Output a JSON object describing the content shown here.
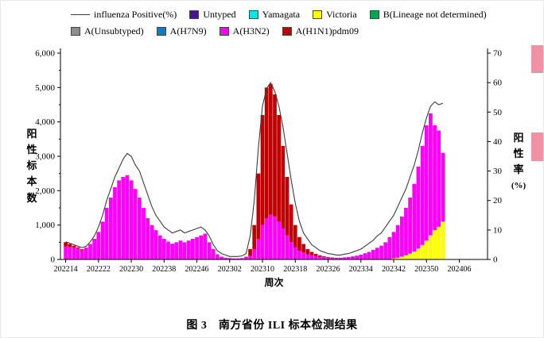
{
  "figure": {
    "caption": "图 3　南方省份 ILI 标本检测结果"
  },
  "chart_data": {
    "type": "stacked-bar-line",
    "title": "南方省份 ILI 标本检测结果",
    "legend_position": "top",
    "grid": false,
    "x_axis": {
      "label": "周次",
      "total_slots": 103,
      "ticks": [
        {
          "label": "202214",
          "index": 0
        },
        {
          "label": "202222",
          "index": 8
        },
        {
          "label": "202230",
          "index": 16
        },
        {
          "label": "202238",
          "index": 24
        },
        {
          "label": "202246",
          "index": 32
        },
        {
          "label": "202302",
          "index": 40
        },
        {
          "label": "202310",
          "index": 48
        },
        {
          "label": "202318",
          "index": 56
        },
        {
          "label": "202326",
          "index": 64
        },
        {
          "label": "202334",
          "index": 72
        },
        {
          "label": "202342",
          "index": 80
        },
        {
          "label": "202350",
          "index": 88
        },
        {
          "label": "202406",
          "index": 96
        }
      ]
    },
    "y_left": {
      "label": "阳性标本数",
      "min": 0,
      "max": 6000,
      "step": 1000,
      "minor_step": 500
    },
    "y_right": {
      "label_cn": "阳性率",
      "label_unit": "(%)",
      "min": 0,
      "max": 70,
      "step": 10
    },
    "legend": [
      {
        "label": "influenza Positive(%)",
        "swatch": "line",
        "color": "#3c3c3c",
        "row": 1
      },
      {
        "label": "Untyped",
        "swatch": "box",
        "color": "#4a148c",
        "row": 1
      },
      {
        "label": "Yamagata",
        "swatch": "box",
        "color": "#00e5ee",
        "row": 1
      },
      {
        "label": "Victoria",
        "swatch": "box",
        "color": "#ffff00",
        "row": 1
      },
      {
        "label": "B(Lineage not determined)",
        "swatch": "box",
        "color": "#00a651",
        "row": 1
      },
      {
        "label": "A(Unsubtyped)",
        "swatch": "box",
        "color": "#8c8c8c",
        "row": 2
      },
      {
        "label": "A(H7N9)",
        "swatch": "box",
        "color": "#0f7fc4",
        "row": 2
      },
      {
        "label": "A(H3N2)",
        "swatch": "box",
        "color": "#ff00ff",
        "row": 2
      },
      {
        "label": "A(H1N1)pdm09",
        "swatch": "box",
        "color": "#c00000",
        "row": 2
      }
    ],
    "weeks": [
      "202214",
      "202215",
      "202216",
      "202217",
      "202218",
      "202219",
      "202220",
      "202221",
      "202222",
      "202223",
      "202224",
      "202225",
      "202226",
      "202227",
      "202228",
      "202229",
      "202230",
      "202231",
      "202232",
      "202233",
      "202234",
      "202235",
      "202236",
      "202237",
      "202238",
      "202239",
      "202240",
      "202241",
      "202242",
      "202243",
      "202244",
      "202245",
      "202246",
      "202247",
      "202248",
      "202249",
      "202250",
      "202251",
      "202252",
      "202301",
      "202302",
      "202303",
      "202304",
      "202305",
      "202306",
      "202307",
      "202308",
      "202309",
      "202310",
      "202311",
      "202312",
      "202313",
      "202314",
      "202315",
      "202316",
      "202317",
      "202318",
      "202319",
      "202320",
      "202321",
      "202322",
      "202323",
      "202324",
      "202325",
      "202326",
      "202327",
      "202328",
      "202329",
      "202330",
      "202331",
      "202332",
      "202333",
      "202334",
      "202335",
      "202336",
      "202337",
      "202338",
      "202339",
      "202340",
      "202341",
      "202342",
      "202343",
      "202344",
      "202345",
      "202346",
      "202347",
      "202348",
      "202349",
      "202350",
      "202351",
      "202352",
      "202401",
      "202402"
    ],
    "series": [
      {
        "name": "Victoria",
        "color": "#ffff00",
        "offset": 80,
        "values": [
          30,
          50,
          80,
          120,
          170,
          230,
          320,
          420,
          550,
          700,
          850,
          950,
          1100
        ]
      },
      {
        "name": "A(H3N2)",
        "color": "#ff00ff",
        "offset": 0,
        "values": [
          380,
          370,
          350,
          320,
          280,
          350,
          450,
          600,
          800,
          1100,
          1500,
          1800,
          2100,
          2300,
          2400,
          2450,
          2300,
          2050,
          1800,
          1500,
          1200,
          1000,
          850,
          700,
          600,
          520,
          460,
          500,
          550,
          500,
          550,
          600,
          650,
          700,
          750,
          500,
          300,
          150,
          80,
          50,
          40,
          30,
          30,
          40,
          80,
          100,
          300,
          600,
          1000,
          1200,
          1300,
          1250,
          1100,
          900,
          700,
          500,
          350,
          250,
          200,
          150,
          120,
          100,
          80,
          65,
          55,
          50,
          50,
          50,
          60,
          70,
          90,
          110,
          140,
          180,
          220,
          280,
          340,
          400,
          500,
          650,
          770,
          950,
          1170,
          1380,
          1630,
          1970,
          2380,
          2880,
          3350,
          3550,
          3050,
          2800,
          2000
        ]
      },
      {
        "name": "A(H1N1)pdm09",
        "color": "#c00000",
        "offset": 0,
        "values": [
          120,
          80,
          50,
          30,
          20,
          0,
          0,
          0,
          0,
          0,
          0,
          0,
          0,
          0,
          0,
          0,
          0,
          0,
          0,
          0,
          0,
          0,
          0,
          0,
          0,
          0,
          0,
          0,
          0,
          0,
          0,
          0,
          0,
          0,
          0,
          0,
          0,
          0,
          0,
          0,
          0,
          0,
          0,
          0,
          0,
          200,
          700,
          1900,
          3200,
          3800,
          3800,
          3550,
          3100,
          2400,
          1700,
          1100,
          650,
          400,
          250,
          150,
          100,
          60,
          40,
          25,
          15,
          10,
          0,
          0,
          0,
          0,
          0,
          0,
          0,
          0,
          0,
          0,
          0,
          0,
          0,
          0,
          0,
          0,
          0,
          0,
          0,
          0,
          0,
          0,
          0,
          0,
          0,
          0,
          0
        ]
      }
    ],
    "line_series": {
      "name": "influenza Positive(%)",
      "color": "#3c3c3c",
      "values": [
        6,
        5.5,
        5,
        4.5,
        4,
        4.5,
        6,
        8,
        11,
        15,
        20,
        24,
        28,
        31,
        34,
        36,
        35,
        32,
        30,
        26,
        22,
        18,
        15,
        13,
        11,
        10,
        9,
        9.5,
        10,
        9,
        9.5,
        10,
        10.5,
        11,
        10,
        8,
        5,
        3,
        2,
        1.5,
        1,
        1,
        1,
        1.2,
        2,
        8,
        20,
        38,
        52,
        58,
        60,
        57,
        52,
        45,
        36,
        27,
        19,
        13,
        9,
        7,
        5,
        4,
        3,
        2.5,
        2,
        1.8,
        1.5,
        1.5,
        1.8,
        2,
        2.5,
        3,
        3.5,
        4.5,
        5.5,
        6.5,
        8,
        9,
        11,
        13,
        15,
        18,
        21,
        24,
        28,
        32,
        37,
        43,
        48,
        52,
        53.5,
        52.5,
        53
      ]
    }
  }
}
